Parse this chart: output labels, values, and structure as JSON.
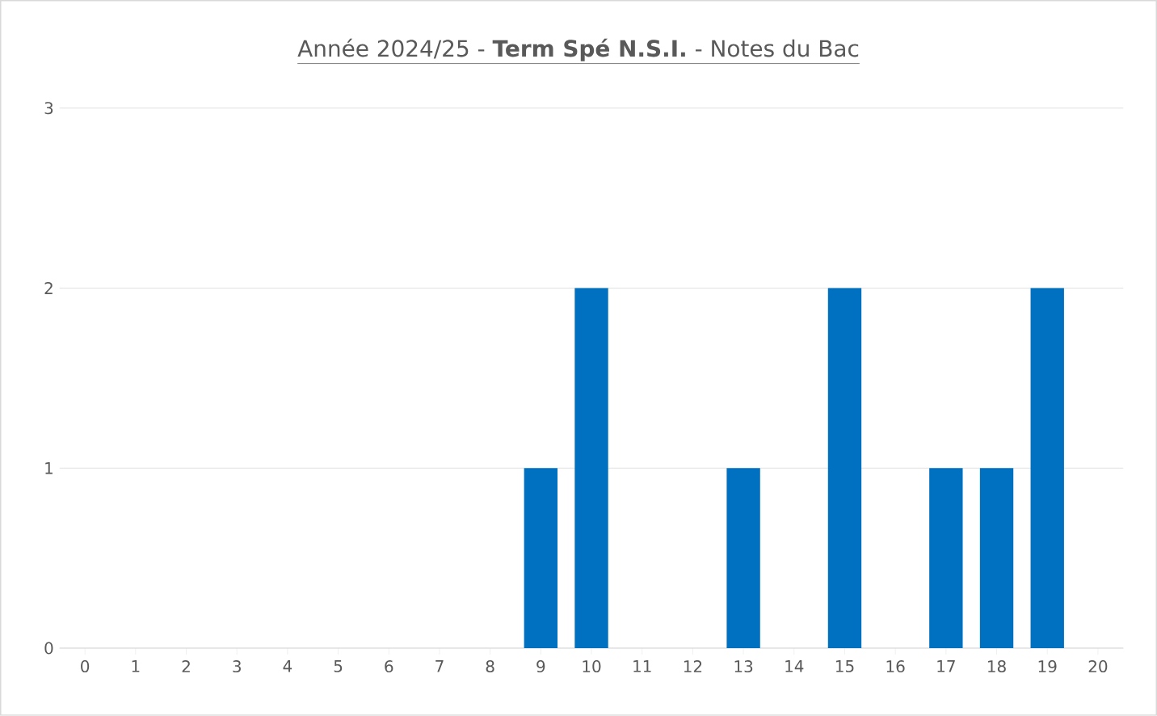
{
  "chart_data": {
    "type": "bar",
    "title": "Année 2024/25 - **Term Spé N.S.I.** - Notes du Bac",
    "categories": [
      "0",
      "1",
      "2",
      "3",
      "4",
      "5",
      "6",
      "7",
      "8",
      "9",
      "10",
      "11",
      "12",
      "13",
      "14",
      "15",
      "16",
      "17",
      "18",
      "19",
      "20"
    ],
    "values": [
      0,
      0,
      0,
      0,
      0,
      0,
      0,
      0,
      0,
      1,
      2,
      0,
      0,
      1,
      0,
      2,
      0,
      1,
      1,
      2,
      0
    ],
    "color": "#0070c0",
    "ylim": [
      0,
      3
    ],
    "yticks": [
      0,
      1,
      2,
      3
    ],
    "grid": "y"
  }
}
